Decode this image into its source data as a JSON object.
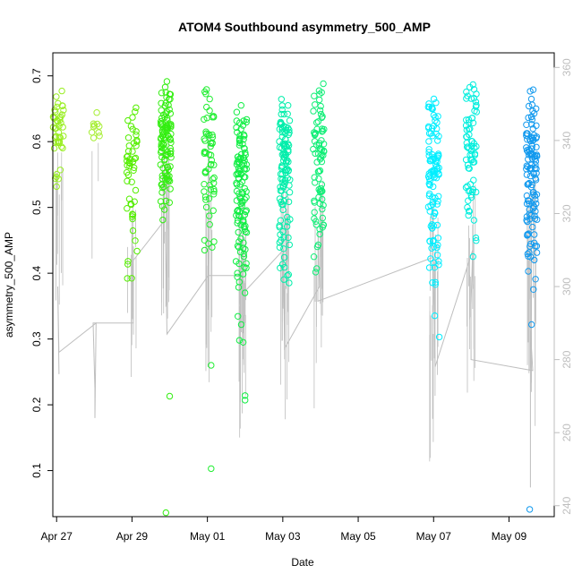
{
  "chart_data": {
    "type": "scatter",
    "title": "ATOM4 Southbound asymmetry_500_AMP",
    "xlabel": "Date",
    "ylabel": "asymmetry_500_AMP",
    "x_ticks": [
      "Apr 27",
      "Apr 29",
      "May 01",
      "May 03",
      "May 05",
      "May 07",
      "May 09"
    ],
    "x_range_days": [
      -0.1,
      13.2
    ],
    "x_ticks_days": [
      0,
      2,
      4,
      6,
      8,
      10,
      12
    ],
    "ylim": [
      0.03,
      0.735
    ],
    "y_ticks": [
      0.1,
      0.2,
      0.3,
      0.4,
      0.5,
      0.6,
      0.7
    ],
    "y2_range": [
      237,
      364
    ],
    "y2_ticks": [
      240,
      260,
      280,
      300,
      320,
      340,
      360
    ],
    "grid": false,
    "colors": {
      "line": "#bebebe",
      "right_axis": "#bebebe",
      "point_palette": [
        "#9aee2a",
        "#33f000",
        "#00ff55",
        "#00f0c0",
        "#00f5ff",
        "#0099ee"
      ]
    },
    "clusters": [
      {
        "x": 0.05,
        "y_min": 0.51,
        "y_max": 0.685,
        "n": 45,
        "color": "#99ee22"
      },
      {
        "x": 1.0,
        "y_min": 0.58,
        "y_max": 0.65,
        "n": 10,
        "color": "#a6ee33"
      },
      {
        "x": 2.0,
        "y_min": 0.39,
        "y_max": 0.68,
        "n": 50,
        "color": "#55ee00"
      },
      {
        "x": 2.9,
        "y_min": 0.46,
        "y_max": 0.698,
        "n": 110,
        "color": "#33ee11"
      },
      {
        "x": 4.05,
        "y_min": 0.41,
        "y_max": 0.7,
        "n": 60,
        "color": "#22ee33"
      },
      {
        "x": 4.9,
        "y_min": 0.33,
        "y_max": 0.67,
        "n": 120,
        "color": "#11ee44"
      },
      {
        "x": 6.05,
        "y_min": 0.365,
        "y_max": 0.68,
        "n": 110,
        "color": "#00eeaa"
      },
      {
        "x": 6.95,
        "y_min": 0.39,
        "y_max": 0.706,
        "n": 80,
        "color": "#11ee77"
      },
      {
        "x": 10.0,
        "y_min": 0.3,
        "y_max": 0.69,
        "n": 110,
        "color": "#00eeff"
      },
      {
        "x": 11.0,
        "y_min": 0.38,
        "y_max": 0.7,
        "n": 70,
        "color": "#00eedd"
      },
      {
        "x": 12.6,
        "y_min": 0.33,
        "y_max": 0.71,
        "n": 120,
        "color": "#1199ee"
      }
    ],
    "outliers": [
      {
        "x": 2.9,
        "y": 0.036,
        "color": "#33ee11"
      },
      {
        "x": 3.0,
        "y": 0.213,
        "color": "#33ee11"
      },
      {
        "x": 4.1,
        "y": 0.103,
        "color": "#22ee33"
      },
      {
        "x": 4.1,
        "y": 0.26,
        "color": "#22ee33"
      },
      {
        "x": 5.0,
        "y": 0.207,
        "color": "#11ee44"
      },
      {
        "x": 5.0,
        "y": 0.214,
        "color": "#11ee44"
      },
      {
        "x": 4.95,
        "y": 0.295,
        "color": "#11ee44"
      },
      {
        "x": 4.85,
        "y": 0.298,
        "color": "#11ee44"
      },
      {
        "x": 4.9,
        "y": 0.322,
        "color": "#11ee44"
      },
      {
        "x": 12.55,
        "y": 0.041,
        "color": "#1199ee"
      },
      {
        "x": 12.6,
        "y": 0.322,
        "color": "#1199ee"
      },
      {
        "x": 10.15,
        "y": 0.303,
        "color": "#00eeff"
      }
    ],
    "line_series": {
      "y2_points": [
        [
          0.05,
          276
        ],
        [
          0.05,
          300
        ],
        [
          0.05,
          282
        ],
        [
          1.0,
          290
        ],
        [
          1.0,
          264
        ],
        [
          1.0,
          272
        ],
        [
          1.0,
          290
        ],
        [
          2.0,
          290
        ],
        [
          2.0,
          307
        ],
        [
          2.9,
          319
        ],
        [
          2.9,
          295
        ],
        [
          2.9,
          315
        ],
        [
          2.9,
          287
        ],
        [
          4.05,
          303
        ],
        [
          4.05,
          318
        ],
        [
          4.05,
          343
        ],
        [
          4.05,
          303
        ],
        [
          4.9,
          303
        ],
        [
          4.9,
          325
        ],
        [
          4.9,
          298
        ],
        [
          6.05,
          310
        ],
        [
          6.05,
          283
        ],
        [
          6.95,
          300
        ],
        [
          6.95,
          315
        ],
        [
          6.95,
          296
        ],
        [
          10.0,
          308
        ],
        [
          10.0,
          278
        ],
        [
          11.0,
          310
        ],
        [
          11.0,
          295
        ],
        [
          11.0,
          280
        ],
        [
          12.6,
          277
        ],
        [
          12.6,
          288
        ],
        [
          12.6,
          245
        ]
      ]
    }
  }
}
